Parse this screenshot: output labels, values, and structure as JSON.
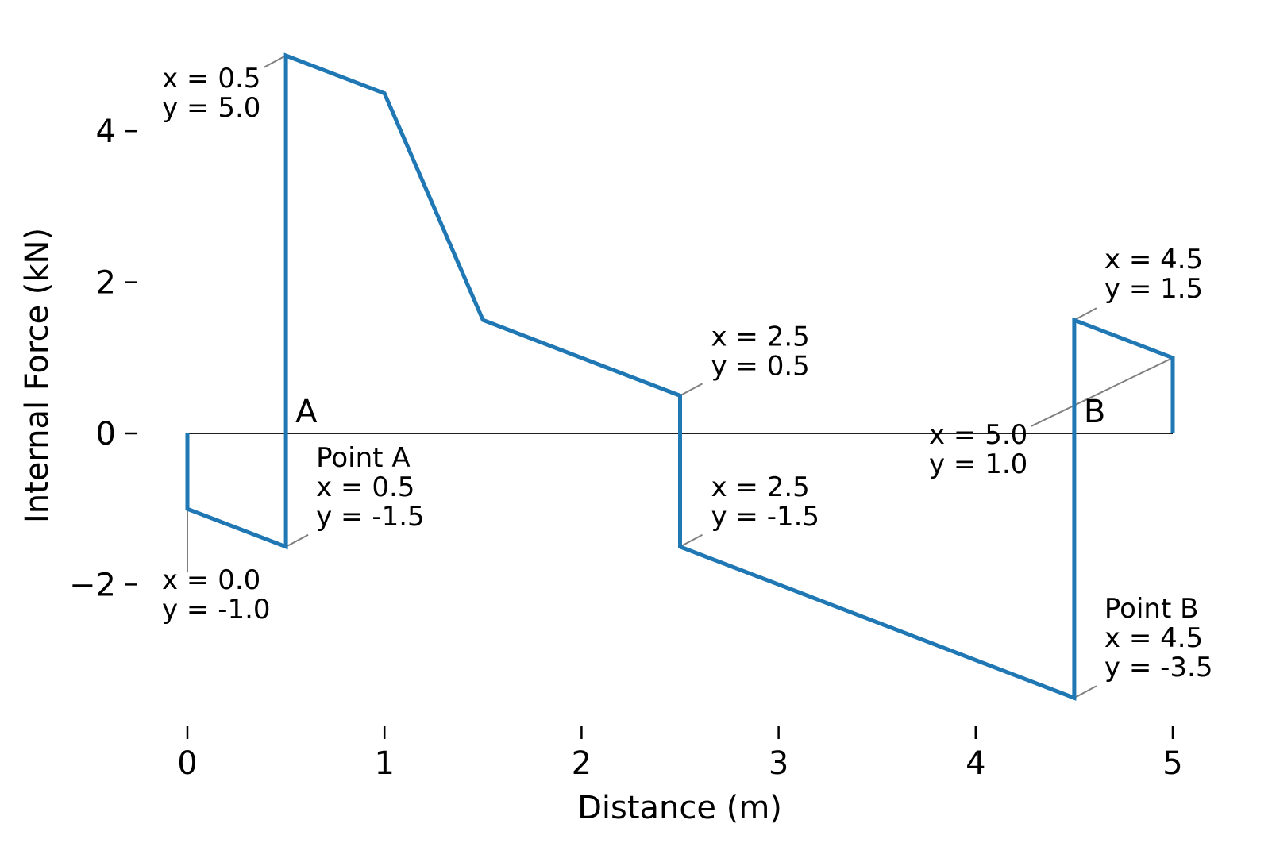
{
  "chart_data": {
    "type": "line",
    "title": "",
    "xlabel": "Distance (m)",
    "ylabel": "Internal Force  (kN)",
    "xlim": [
      0,
      5
    ],
    "ylim": [
      -3.5,
      5
    ],
    "grid": false,
    "series_color": "#1f77b4",
    "x_ticks": [
      "0",
      "1",
      "2",
      "3",
      "4",
      "5"
    ],
    "y_ticks": [
      "−2",
      "0",
      "2",
      "4"
    ],
    "series": [
      {
        "x": [
          0,
          0,
          0.5,
          0.5,
          1.0,
          1.5,
          2.5,
          2.5,
          4.5,
          4.5,
          5.0,
          5.0
        ],
        "y": [
          0,
          -1.0,
          -1.5,
          5.0,
          4.5,
          1.5,
          0.5,
          -1.5,
          -3.5,
          1.5,
          1.0,
          0
        ]
      }
    ],
    "point_labels": [
      {
        "text": "A",
        "x": 0.5
      },
      {
        "text": "B",
        "x": 4.5
      }
    ],
    "annotations": [
      {
        "lines": [
          "x = 0.5",
          "y = 5.0"
        ],
        "x": 0.5,
        "y": 5.0
      },
      {
        "lines": [
          "Point A",
          "x = 0.5",
          "y = -1.5"
        ],
        "x": 0.5,
        "y": -1.5
      },
      {
        "lines": [
          "x = 0.0",
          "y = -1.0"
        ],
        "x": 0.0,
        "y": -1.0
      },
      {
        "lines": [
          "x = 2.5",
          "y = 0.5"
        ],
        "x": 2.5,
        "y": 0.5
      },
      {
        "lines": [
          "x = 2.5",
          "y = -1.5"
        ],
        "x": 2.5,
        "y": -1.5
      },
      {
        "lines": [
          "x = 4.5",
          "y = 1.5"
        ],
        "x": 4.5,
        "y": 1.5
      },
      {
        "lines": [
          "x = 5.0",
          "y = 1.0"
        ],
        "x": 5.0,
        "y": 1.0
      },
      {
        "lines": [
          "Point B",
          "x = 4.5",
          "y = -3.5"
        ],
        "x": 4.5,
        "y": -3.5
      }
    ]
  }
}
